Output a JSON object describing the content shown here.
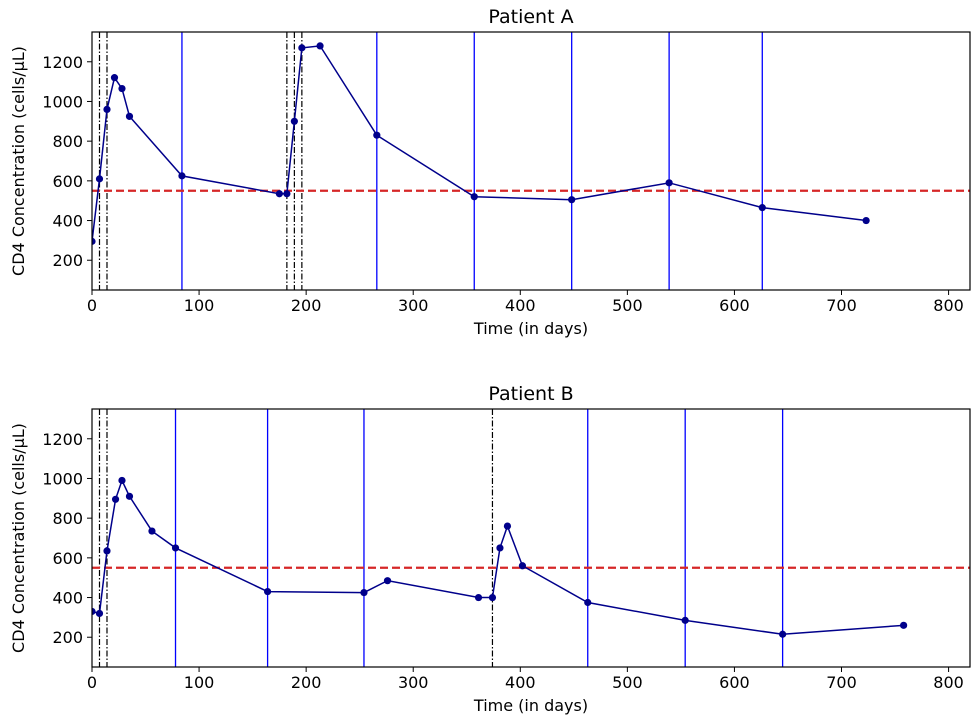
{
  "colors": {
    "series": "#00008b",
    "threshold": "#d62728",
    "blue_vline": "#0000ff",
    "dashdot_vline": "#000000",
    "axes": "#000000",
    "background": "#ffffff"
  },
  "chart_data": [
    {
      "type": "line",
      "title": "Patient A",
      "xlabel": "Time (in days)",
      "ylabel": "CD4 Concentration (cells/μL)",
      "xlim": [
        0,
        820
      ],
      "ylim": [
        50,
        1350
      ],
      "xticks": [
        0,
        100,
        200,
        300,
        400,
        500,
        600,
        700,
        800
      ],
      "yticks": [
        200,
        400,
        600,
        800,
        1000,
        1200
      ],
      "grid": false,
      "threshold": 550,
      "series": [
        {
          "x": [
            0,
            7,
            14,
            21,
            28,
            35,
            84,
            175,
            182,
            189,
            196,
            213,
            266,
            357,
            448,
            539,
            626,
            723
          ],
          "y": [
            295,
            610,
            960,
            1120,
            1065,
            925,
            625,
            535,
            535,
            900,
            1270,
            1280,
            830,
            520,
            505,
            590,
            465,
            400
          ]
        }
      ],
      "dashdot_vlines": [
        7,
        14,
        182,
        189,
        196
      ],
      "solid_vlines": [
        84,
        266,
        357,
        448,
        539,
        626
      ]
    },
    {
      "type": "line",
      "title": "Patient B",
      "xlabel": "Time (in days)",
      "ylabel": "CD4 Concentration (cells/μL)",
      "xlim": [
        0,
        820
      ],
      "ylim": [
        50,
        1350
      ],
      "xticks": [
        0,
        100,
        200,
        300,
        400,
        500,
        600,
        700,
        800
      ],
      "yticks": [
        200,
        400,
        600,
        800,
        1000,
        1200
      ],
      "grid": false,
      "threshold": 550,
      "series": [
        {
          "x": [
            0,
            7,
            14,
            22,
            28,
            35,
            56,
            78,
            164,
            254,
            276,
            361,
            374,
            381,
            388,
            402,
            463,
            554,
            645,
            758
          ],
          "y": [
            330,
            320,
            635,
            895,
            990,
            910,
            735,
            650,
            430,
            425,
            485,
            400,
            400,
            650,
            760,
            560,
            375,
            285,
            215,
            260
          ]
        }
      ],
      "dashdot_vlines": [
        7,
        14,
        374
      ],
      "solid_vlines": [
        78,
        164,
        254,
        463,
        554,
        645
      ]
    }
  ]
}
